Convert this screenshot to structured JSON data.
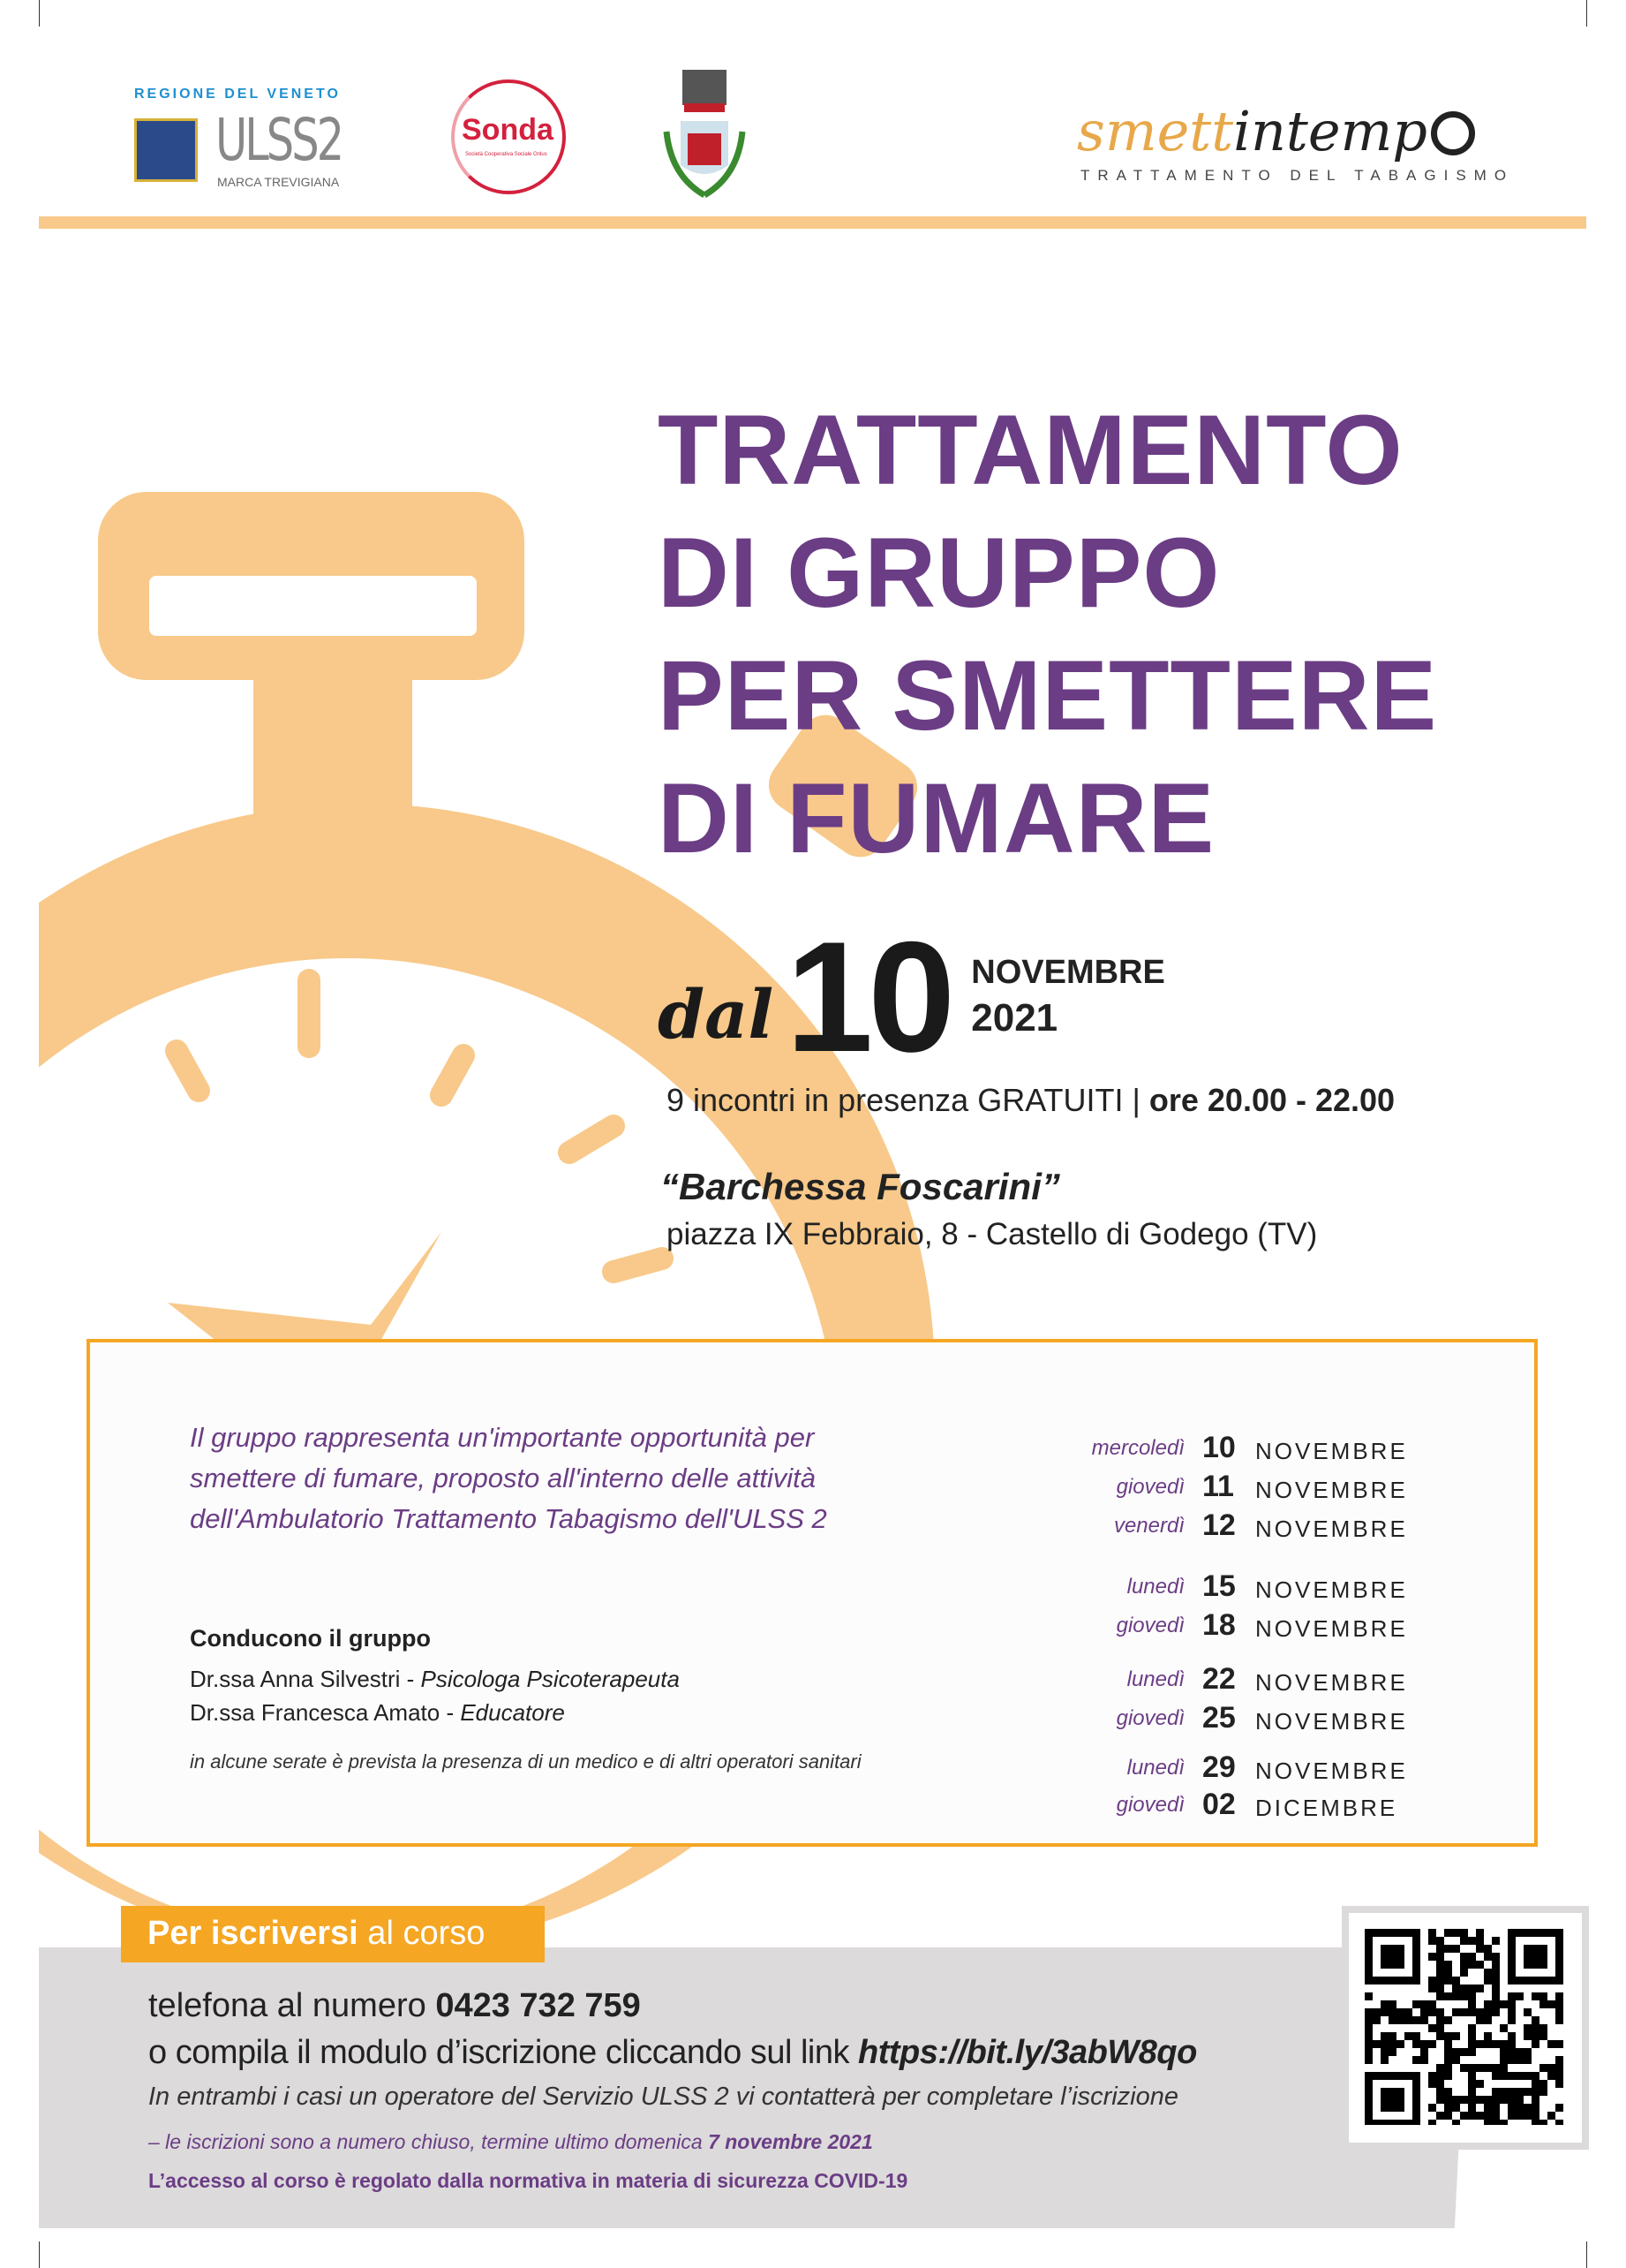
{
  "logos": {
    "ulss": {
      "region": "REGIONE DEL VENETO",
      "name": "ULSS2",
      "sub": "MARCA TREVIGIANA"
    },
    "sonda": {
      "name": "Sonda",
      "sub": "Società Cooperativa Sociale Onlus"
    },
    "smettintempo": {
      "name_a": "smett",
      "name_b": "intemp",
      "sub": "TRATTAMENTO DEL TABAGISMO"
    }
  },
  "title": [
    "TRATTAMENTO",
    "DI GRUPPO",
    "PER SMETTERE",
    "DI FUMARE"
  ],
  "start": {
    "prefix": "dal",
    "day": "10",
    "month": "NOVEMBRE",
    "year": "2021"
  },
  "sessions": {
    "text": "9 incontri in presenza GRATUITI | ",
    "time": "ore 20.00 - 22.00"
  },
  "venue": {
    "name": "“Barchessa Foscarini”",
    "address": "piazza IX Febbraio, 8 - Castello di Godego (TV)"
  },
  "box": {
    "intro": "Il gruppo rappresenta un'importante opportunità per smettere di fumare,  proposto all'interno delle attività dell'Ambulatorio Trattamento Tabagismo dell'ULSS 2",
    "leaders_heading": "Conducono il gruppo",
    "leaders": [
      {
        "name": "Dr.ssa Anna Silvestri - ",
        "role": "Psicologa Psicoterapeuta"
      },
      {
        "name": "Dr.ssa Francesca Amato - ",
        "role": "Educatore"
      }
    ],
    "note": "in alcune serate è prevista la presenza di un medico e di altri operatori sanitari",
    "dates": [
      {
        "day": "mercoledì",
        "num": "10",
        "month": "NOVEMBRE"
      },
      {
        "day": "giovedì",
        "num": "11",
        "month": "NOVEMBRE"
      },
      {
        "day": "venerdì",
        "num": "12",
        "month": "NOVEMBRE"
      },
      {
        "day": "lunedì",
        "num": "15",
        "month": "NOVEMBRE"
      },
      {
        "day": "giovedì",
        "num": "18",
        "month": "NOVEMBRE"
      },
      {
        "day": "lunedì",
        "num": "22",
        "month": "NOVEMBRE"
      },
      {
        "day": "giovedì",
        "num": "25",
        "month": "NOVEMBRE"
      },
      {
        "day": "lunedì",
        "num": "29",
        "month": "NOVEMBRE"
      },
      {
        "day": "giovedì",
        "num": "02",
        "month": "DICEMBRE"
      }
    ]
  },
  "signup": {
    "tag_bold": "Per iscriversi",
    "tag_rest": " al corso",
    "phone_label": "telefona al numero ",
    "phone": "0423 732 759",
    "link_label": "o compila il modulo d’iscrizione cliccando sul link ",
    "link": "https://bit.ly/3abW8qo",
    "contact_note": "In entrambi i casi un operatore del Servizio ULSS 2 vi contatterà per completare l’iscrizione",
    "deadline_text": "– le iscrizioni sono a numero chiuso, termine ultimo domenica ",
    "deadline_date": "7 novembre 2021",
    "covid": "L’accesso al corso è regolato dalla normativa in materia di sicurezza COVID-19"
  },
  "colors": {
    "purple": "#6b3d85",
    "orange": "#f5a623",
    "peach": "#f8c98a",
    "grey": "#dcdadb"
  }
}
